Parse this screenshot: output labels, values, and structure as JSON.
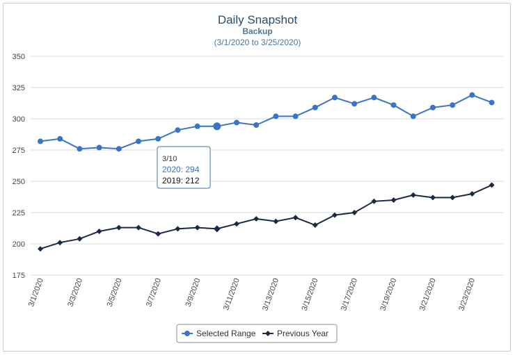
{
  "chart_data": {
    "type": "line",
    "title": "Daily Snapshot",
    "subtitle": "Backup",
    "range_label": "(3/1/2020 to 3/25/2020)",
    "x": [
      "3/1/2020",
      "3/2/2020",
      "3/3/2020",
      "3/4/2020",
      "3/5/2020",
      "3/6/2020",
      "3/7/2020",
      "3/8/2020",
      "3/9/2020",
      "3/10/2020",
      "3/11/2020",
      "3/12/2020",
      "3/13/2020",
      "3/14/2020",
      "3/15/2020",
      "3/16/2020",
      "3/17/2020",
      "3/18/2020",
      "3/19/2020",
      "3/20/2020",
      "3/21/2020",
      "3/22/2020",
      "3/23/2020",
      "3/24/2020"
    ],
    "x_tick_labels": [
      "3/1/2020",
      "3/3/2020",
      "3/5/2020",
      "3/7/2020",
      "3/9/2020",
      "3/11/2020",
      "3/13/2020",
      "3/15/2020",
      "3/17/2020",
      "3/19/2020",
      "3/21/2020",
      "3/23/2020"
    ],
    "ylim": [
      175,
      350
    ],
    "y_ticks": [
      175,
      200,
      225,
      250,
      275,
      300,
      325,
      350
    ],
    "grid": true,
    "legend_position": "bottom-center",
    "series": [
      {
        "name": "Selected Range",
        "color": "#3b74c6",
        "marker": "circle",
        "values": [
          282,
          284,
          276,
          277,
          276,
          282,
          284,
          291,
          294,
          294,
          297,
          295,
          302,
          302,
          309,
          317,
          312,
          317,
          311,
          302,
          309,
          311,
          319,
          313
        ]
      },
      {
        "name": "Previous Year",
        "color": "#1b2a44",
        "marker": "diamond",
        "values": [
          196,
          201,
          204,
          210,
          213,
          213,
          208,
          212,
          213,
          212,
          216,
          220,
          218,
          221,
          215,
          223,
          225,
          234,
          235,
          239,
          237,
          237,
          240,
          247
        ]
      }
    ],
    "tooltip": {
      "index": 9,
      "date": "3/10",
      "line_2020": "2020: 294",
      "line_2019": "2019: 212"
    }
  }
}
